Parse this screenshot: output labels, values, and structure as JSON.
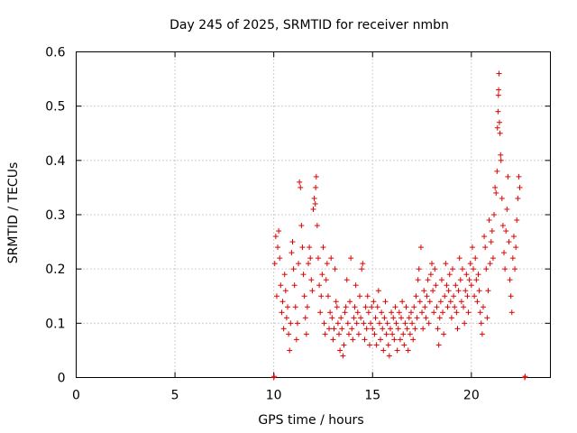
{
  "chart_data": {
    "type": "scatter",
    "title": "Day 245 of 2025, SRMTID for receiver nmbn",
    "xlabel": "GPS time / hours",
    "ylabel": "SRMTID / TECUs",
    "xlim": [
      0,
      24
    ],
    "ylim": [
      0,
      0.6
    ],
    "xticks": [
      0,
      5,
      10,
      15,
      20
    ],
    "yticks": [
      0,
      0.1,
      0.2,
      0.3,
      0.4,
      0.5,
      0.6
    ],
    "grid": true,
    "marker": "+",
    "color": "#e00000",
    "series": [
      {
        "name": "SRMTID",
        "points": [
          [
            10.0,
            0.0
          ],
          [
            10.02,
            0.002
          ],
          [
            22.7,
            0.0
          ],
          [
            22.72,
            0.002
          ],
          [
            10.05,
            0.21
          ],
          [
            10.1,
            0.26
          ],
          [
            10.15,
            0.15
          ],
          [
            10.2,
            0.24
          ],
          [
            10.25,
            0.27
          ],
          [
            10.3,
            0.22
          ],
          [
            10.35,
            0.17
          ],
          [
            10.4,
            0.12
          ],
          [
            10.45,
            0.14
          ],
          [
            10.5,
            0.09
          ],
          [
            10.55,
            0.19
          ],
          [
            10.6,
            0.16
          ],
          [
            10.65,
            0.11
          ],
          [
            10.7,
            0.13
          ],
          [
            10.75,
            0.08
          ],
          [
            10.8,
            0.05
          ],
          [
            10.85,
            0.1
          ],
          [
            10.9,
            0.23
          ],
          [
            10.95,
            0.25
          ],
          [
            11.0,
            0.2
          ],
          [
            11.05,
            0.17
          ],
          [
            11.1,
            0.13
          ],
          [
            11.15,
            0.07
          ],
          [
            11.2,
            0.1
          ],
          [
            11.25,
            0.21
          ],
          [
            11.3,
            0.36
          ],
          [
            11.35,
            0.35
          ],
          [
            11.4,
            0.28
          ],
          [
            11.45,
            0.24
          ],
          [
            11.5,
            0.19
          ],
          [
            11.55,
            0.15
          ],
          [
            11.6,
            0.11
          ],
          [
            11.65,
            0.08
          ],
          [
            11.7,
            0.13
          ],
          [
            11.75,
            0.21
          ],
          [
            11.8,
            0.24
          ],
          [
            11.85,
            0.22
          ],
          [
            11.9,
            0.18
          ],
          [
            11.95,
            0.16
          ],
          [
            12.0,
            0.31
          ],
          [
            12.05,
            0.33
          ],
          [
            12.1,
            0.32
          ],
          [
            12.12,
            0.35
          ],
          [
            12.15,
            0.37
          ],
          [
            12.2,
            0.28
          ],
          [
            12.25,
            0.22
          ],
          [
            12.3,
            0.17
          ],
          [
            12.35,
            0.12
          ],
          [
            12.4,
            0.15
          ],
          [
            12.45,
            0.19
          ],
          [
            12.5,
            0.24
          ],
          [
            12.55,
            0.1
          ],
          [
            12.6,
            0.08
          ],
          [
            12.65,
            0.18
          ],
          [
            12.7,
            0.21
          ],
          [
            12.75,
            0.15
          ],
          [
            12.8,
            0.09
          ],
          [
            12.85,
            0.12
          ],
          [
            12.9,
            0.22
          ],
          [
            12.95,
            0.11
          ],
          [
            13.0,
            0.07
          ],
          [
            13.05,
            0.09
          ],
          [
            13.1,
            0.2
          ],
          [
            13.15,
            0.14
          ],
          [
            13.2,
            0.13
          ],
          [
            13.25,
            0.1
          ],
          [
            13.3,
            0.08
          ],
          [
            13.35,
            0.05
          ],
          [
            13.4,
            0.11
          ],
          [
            13.45,
            0.09
          ],
          [
            13.5,
            0.04
          ],
          [
            13.55,
            0.06
          ],
          [
            13.6,
            0.12
          ],
          [
            13.65,
            0.13
          ],
          [
            13.7,
            0.18
          ],
          [
            13.75,
            0.1
          ],
          [
            13.8,
            0.08
          ],
          [
            13.85,
            0.14
          ],
          [
            13.9,
            0.22
          ],
          [
            13.95,
            0.09
          ],
          [
            14.0,
            0.07
          ],
          [
            14.05,
            0.11
          ],
          [
            14.1,
            0.13
          ],
          [
            14.15,
            0.17
          ],
          [
            14.2,
            0.1
          ],
          [
            14.25,
            0.12
          ],
          [
            14.3,
            0.08
          ],
          [
            14.35,
            0.15
          ],
          [
            14.4,
            0.11
          ],
          [
            14.45,
            0.2
          ],
          [
            14.5,
            0.21
          ],
          [
            14.55,
            0.1
          ],
          [
            14.6,
            0.07
          ],
          [
            14.65,
            0.13
          ],
          [
            14.7,
            0.09
          ],
          [
            14.75,
            0.15
          ],
          [
            14.8,
            0.12
          ],
          [
            14.85,
            0.06
          ],
          [
            14.9,
            0.1
          ],
          [
            14.95,
            0.13
          ],
          [
            15.0,
            0.09
          ],
          [
            15.05,
            0.14
          ],
          [
            15.1,
            0.08
          ],
          [
            15.15,
            0.11
          ],
          [
            15.2,
            0.06
          ],
          [
            15.25,
            0.13
          ],
          [
            15.3,
            0.16
          ],
          [
            15.35,
            0.1
          ],
          [
            15.4,
            0.07
          ],
          [
            15.45,
            0.12
          ],
          [
            15.5,
            0.09
          ],
          [
            15.55,
            0.05
          ],
          [
            15.6,
            0.11
          ],
          [
            15.65,
            0.14
          ],
          [
            15.7,
            0.08
          ],
          [
            15.75,
            0.1
          ],
          [
            15.8,
            0.06
          ],
          [
            15.85,
            0.04
          ],
          [
            15.9,
            0.09
          ],
          [
            15.95,
            0.12
          ],
          [
            16.0,
            0.08
          ],
          [
            16.05,
            0.11
          ],
          [
            16.1,
            0.07
          ],
          [
            16.15,
            0.13
          ],
          [
            16.2,
            0.1
          ],
          [
            16.25,
            0.05
          ],
          [
            16.3,
            0.09
          ],
          [
            16.35,
            0.12
          ],
          [
            16.4,
            0.07
          ],
          [
            16.45,
            0.11
          ],
          [
            16.5,
            0.14
          ],
          [
            16.55,
            0.08
          ],
          [
            16.6,
            0.06
          ],
          [
            16.65,
            0.1
          ],
          [
            16.7,
            0.13
          ],
          [
            16.75,
            0.09
          ],
          [
            16.8,
            0.05
          ],
          [
            16.85,
            0.11
          ],
          [
            16.9,
            0.08
          ],
          [
            16.95,
            0.12
          ],
          [
            17.0,
            0.1
          ],
          [
            17.05,
            0.07
          ],
          [
            17.1,
            0.13
          ],
          [
            17.15,
            0.09
          ],
          [
            17.2,
            0.15
          ],
          [
            17.25,
            0.11
          ],
          [
            17.3,
            0.18
          ],
          [
            17.35,
            0.2
          ],
          [
            17.4,
            0.14
          ],
          [
            17.45,
            0.24
          ],
          [
            17.5,
            0.12
          ],
          [
            17.55,
            0.09
          ],
          [
            17.6,
            0.16
          ],
          [
            17.65,
            0.13
          ],
          [
            17.7,
            0.11
          ],
          [
            17.75,
            0.15
          ],
          [
            17.8,
            0.18
          ],
          [
            17.85,
            0.1
          ],
          [
            17.9,
            0.14
          ],
          [
            17.95,
            0.19
          ],
          [
            18.0,
            0.21
          ],
          [
            18.05,
            0.16
          ],
          [
            18.1,
            0.12
          ],
          [
            18.15,
            0.2
          ],
          [
            18.2,
            0.17
          ],
          [
            18.25,
            0.13
          ],
          [
            18.3,
            0.09
          ],
          [
            18.35,
            0.06
          ],
          [
            18.4,
            0.11
          ],
          [
            18.45,
            0.14
          ],
          [
            18.5,
            0.18
          ],
          [
            18.55,
            0.12
          ],
          [
            18.6,
            0.08
          ],
          [
            18.65,
            0.15
          ],
          [
            18.7,
            0.21
          ],
          [
            18.75,
            0.17
          ],
          [
            18.8,
            0.13
          ],
          [
            18.85,
            0.16
          ],
          [
            18.9,
            0.19
          ],
          [
            18.95,
            0.14
          ],
          [
            19.0,
            0.11
          ],
          [
            19.05,
            0.2
          ],
          [
            19.1,
            0.15
          ],
          [
            19.15,
            0.13
          ],
          [
            19.2,
            0.17
          ],
          [
            19.25,
            0.12
          ],
          [
            19.3,
            0.09
          ],
          [
            19.35,
            0.16
          ],
          [
            19.4,
            0.22
          ],
          [
            19.45,
            0.18
          ],
          [
            19.5,
            0.14
          ],
          [
            19.55,
            0.2
          ],
          [
            19.6,
            0.13
          ],
          [
            19.65,
            0.1
          ],
          [
            19.7,
            0.16
          ],
          [
            19.75,
            0.19
          ],
          [
            19.8,
            0.15
          ],
          [
            19.85,
            0.12
          ],
          [
            19.9,
            0.18
          ],
          [
            19.95,
            0.21
          ],
          [
            20.0,
            0.17
          ],
          [
            20.05,
            0.24
          ],
          [
            20.1,
            0.2
          ],
          [
            20.15,
            0.15
          ],
          [
            20.2,
            0.22
          ],
          [
            20.25,
            0.18
          ],
          [
            20.3,
            0.14
          ],
          [
            20.35,
            0.19
          ],
          [
            20.4,
            0.16
          ],
          [
            20.45,
            0.12
          ],
          [
            20.5,
            0.1
          ],
          [
            20.55,
            0.08
          ],
          [
            20.6,
            0.13
          ],
          [
            20.65,
            0.26
          ],
          [
            20.7,
            0.24
          ],
          [
            20.75,
            0.2
          ],
          [
            20.8,
            0.11
          ],
          [
            20.85,
            0.16
          ],
          [
            20.9,
            0.29
          ],
          [
            20.95,
            0.21
          ],
          [
            21.0,
            0.25
          ],
          [
            21.05,
            0.27
          ],
          [
            21.1,
            0.22
          ],
          [
            21.15,
            0.3
          ],
          [
            21.2,
            0.35
          ],
          [
            21.25,
            0.34
          ],
          [
            21.3,
            0.38
          ],
          [
            21.32,
            0.46
          ],
          [
            21.35,
            0.49
          ],
          [
            21.37,
            0.52
          ],
          [
            21.38,
            0.53
          ],
          [
            21.4,
            0.56
          ],
          [
            21.42,
            0.47
          ],
          [
            21.45,
            0.45
          ],
          [
            21.48,
            0.41
          ],
          [
            21.5,
            0.4
          ],
          [
            21.55,
            0.33
          ],
          [
            21.6,
            0.28
          ],
          [
            21.65,
            0.23
          ],
          [
            21.7,
            0.2
          ],
          [
            21.75,
            0.27
          ],
          [
            21.8,
            0.31
          ],
          [
            21.85,
            0.37
          ],
          [
            21.9,
            0.25
          ],
          [
            21.95,
            0.18
          ],
          [
            22.0,
            0.15
          ],
          [
            22.05,
            0.12
          ],
          [
            22.1,
            0.22
          ],
          [
            22.15,
            0.26
          ],
          [
            22.2,
            0.2
          ],
          [
            22.25,
            0.24
          ],
          [
            22.3,
            0.29
          ],
          [
            22.35,
            0.33
          ],
          [
            22.4,
            0.37
          ],
          [
            22.45,
            0.35
          ]
        ]
      }
    ]
  }
}
